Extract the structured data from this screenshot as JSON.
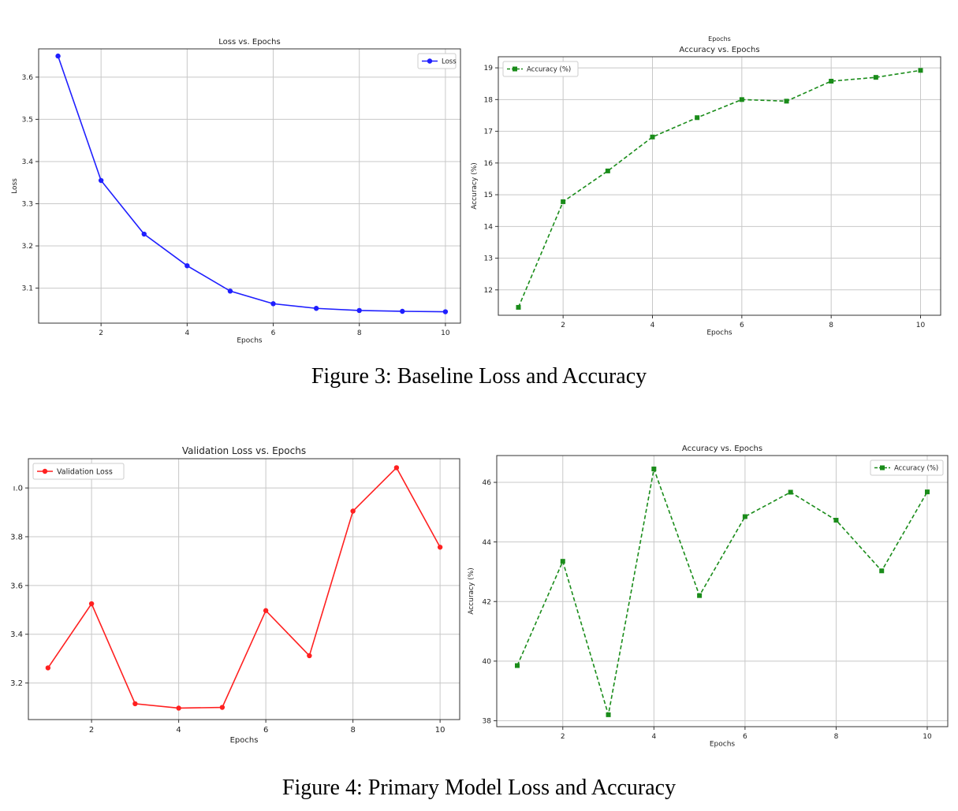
{
  "captions": {
    "fig3": "Figure 3: Baseline Loss and Accuracy",
    "fig4": "Figure 4: Primary Model Loss and Accuracy"
  },
  "chart_data": [
    {
      "id": "c1",
      "type": "line",
      "title": "Loss vs. Epochs",
      "xlabel": "Epochs",
      "ylabel": "Loss",
      "x": [
        1,
        2,
        3,
        4,
        5,
        6,
        7,
        8,
        9,
        10
      ],
      "series": [
        {
          "name": "Loss",
          "color": "#1f1fff",
          "marker": "circle",
          "dashed": false,
          "values": [
            3.65,
            3.355,
            3.228,
            3.153,
            3.093,
            3.063,
            3.052,
            3.047,
            3.045,
            3.044
          ]
        }
      ],
      "xlim": [
        0.55,
        10.35
      ],
      "ylim": [
        3.017,
        3.667
      ],
      "xticks": [
        2,
        4,
        6,
        8,
        10
      ],
      "yticks": [
        3.1,
        3.2,
        3.3,
        3.4,
        3.5,
        3.6
      ],
      "grid": true,
      "legend": "top-right"
    },
    {
      "id": "c2",
      "type": "line",
      "title": "Accuracy vs. Epochs",
      "top_label": "Epochs",
      "xlabel": "Epochs",
      "ylabel": "Accuracy (%)",
      "x": [
        1,
        2,
        3,
        4,
        5,
        6,
        7,
        8,
        9,
        10
      ],
      "series": [
        {
          "name": "Accuracy (%)",
          "color": "#1a8c1a",
          "marker": "square",
          "dashed": true,
          "values": [
            11.45,
            14.78,
            15.75,
            16.82,
            17.43,
            18.0,
            17.95,
            18.58,
            18.7,
            18.92
          ]
        }
      ],
      "xlim": [
        0.55,
        10.45
      ],
      "ylim": [
        11.2,
        19.35
      ],
      "xticks": [
        2,
        4,
        6,
        8,
        10
      ],
      "yticks": [
        12,
        13,
        14,
        15,
        16,
        17,
        18,
        19
      ],
      "grid": true,
      "legend": "top-left"
    },
    {
      "id": "c3",
      "type": "line",
      "title": "Validation Loss vs. Epochs",
      "xlabel": "Epochs",
      "ylabel": "",
      "x": [
        1,
        2,
        3,
        4,
        5,
        6,
        7,
        8,
        9,
        10
      ],
      "series": [
        {
          "name": "Validation Loss",
          "color": "#ff2020",
          "marker": "circle",
          "dashed": false,
          "values": [
            3.262,
            3.525,
            3.115,
            3.097,
            3.1,
            3.497,
            3.312,
            3.905,
            4.083,
            3.757
          ]
        }
      ],
      "xlim": [
        0.55,
        10.45
      ],
      "ylim": [
        3.05,
        4.12
      ],
      "xticks": [
        2,
        4,
        6,
        8,
        10
      ],
      "yticks": [
        3.2,
        3.4,
        3.6,
        3.8,
        4.0
      ],
      "ytick_labels": [
        "3.2",
        "3.4",
        "3.6",
        "3.8",
        "ı.0"
      ],
      "grid": true,
      "legend": "top-left"
    },
    {
      "id": "c4",
      "type": "line",
      "title": "Accuracy vs. Epochs",
      "xlabel": "Epochs",
      "ylabel": "Accuracy (%)",
      "x": [
        1,
        2,
        3,
        4,
        5,
        6,
        7,
        8,
        9,
        10
      ],
      "series": [
        {
          "name": "Accuracy (%)",
          "color": "#1a8c1a",
          "marker": "square",
          "dashed": true,
          "values": [
            39.85,
            43.35,
            38.2,
            46.45,
            42.2,
            44.85,
            45.67,
            44.73,
            43.03,
            45.68
          ]
        }
      ],
      "xlim": [
        0.55,
        10.45
      ],
      "ylim": [
        37.8,
        46.9
      ],
      "xticks": [
        2,
        4,
        6,
        8,
        10
      ],
      "yticks": [
        38,
        40,
        42,
        44,
        46
      ],
      "grid": true,
      "legend": "top-right"
    }
  ]
}
